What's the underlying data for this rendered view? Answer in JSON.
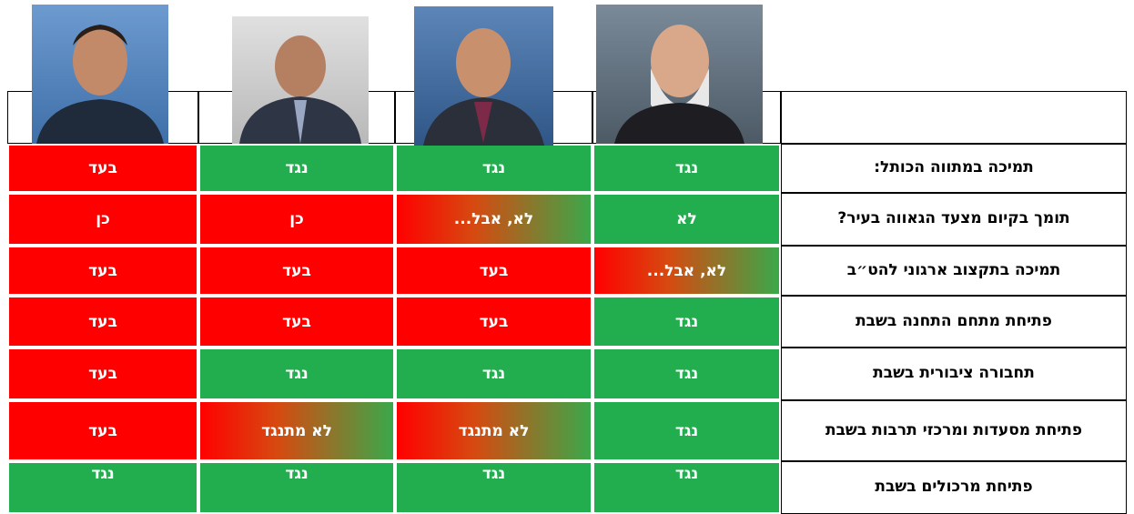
{
  "rows": [
    {
      "label": "תמיכה במתווה הכותל:",
      "cells": [
        {
          "text": "נגד",
          "color": "green"
        },
        {
          "text": "נגד",
          "color": "green"
        },
        {
          "text": "נגד",
          "color": "green"
        },
        {
          "text": "בעד",
          "color": "red"
        }
      ]
    },
    {
      "label": "תומך בקיום מצעד הגאווה בעיר?",
      "cells": [
        {
          "text": "לא",
          "color": "green"
        },
        {
          "text": "לא, אבל...",
          "color": "mixed"
        },
        {
          "text": "כן",
          "color": "red"
        },
        {
          "text": "כן",
          "color": "red"
        }
      ]
    },
    {
      "label": "תמיכה בתקצוב ארגוני להט״ב",
      "cells": [
        {
          "text": "לא, אבל...",
          "color": "mixed"
        },
        {
          "text": "בעד",
          "color": "red"
        },
        {
          "text": "בעד",
          "color": "red"
        },
        {
          "text": "בעד",
          "color": "red"
        }
      ]
    },
    {
      "label": "פתיחת מתחם התחנה בשבת",
      "cells": [
        {
          "text": "נגד",
          "color": "green"
        },
        {
          "text": "בעד",
          "color": "red"
        },
        {
          "text": "בעד",
          "color": "red"
        },
        {
          "text": "בעד",
          "color": "red"
        }
      ]
    },
    {
      "label": "תחבורה ציבורית בשבת",
      "cells": [
        {
          "text": "נגד",
          "color": "green"
        },
        {
          "text": "נגד",
          "color": "green"
        },
        {
          "text": "נגד",
          "color": "green"
        },
        {
          "text": "בעד",
          "color": "red"
        }
      ]
    },
    {
      "label": "פתיחת מסעדות ומרכזי תרבות בשבת",
      "cells": [
        {
          "text": "נגד",
          "color": "green"
        },
        {
          "text": "לא מתנגד",
          "color": "mixed"
        },
        {
          "text": "לא מתנגד",
          "color": "mixed"
        },
        {
          "text": "בעד",
          "color": "red"
        }
      ]
    },
    {
      "label": "פתיחת מרכולים בשבת",
      "cells": [
        {
          "text": "נגד",
          "color": "green"
        },
        {
          "text": "נגד",
          "color": "green"
        },
        {
          "text": "נגד",
          "color": "green"
        },
        {
          "text": "נגד",
          "color": "green"
        }
      ]
    }
  ]
}
